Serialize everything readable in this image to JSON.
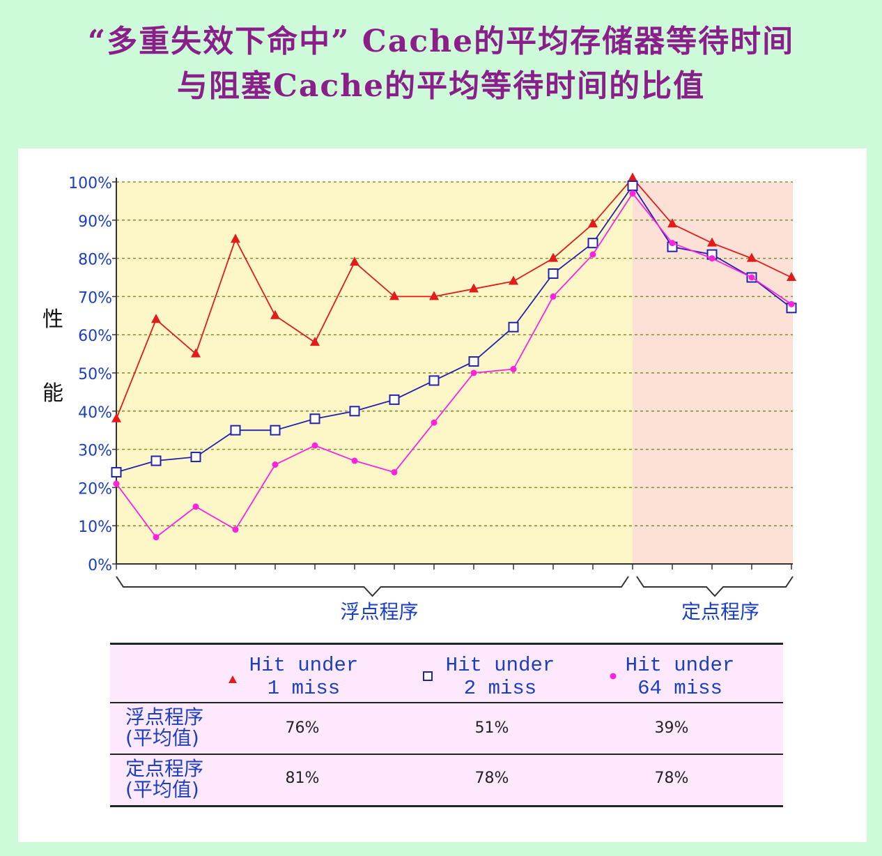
{
  "title": {
    "line1": "“多重失效下命中” Cache的平均存储器等待时间",
    "line2": "与阻塞Cache的平均等待时间的比值"
  },
  "chart_data": {
    "type": "line",
    "ylabel": "性能",
    "ylim": [
      0,
      100
    ],
    "yticks": [
      "0%",
      "10%",
      "20%",
      "30%",
      "40%",
      "50%",
      "60%",
      "70%",
      "80%",
      "90%",
      "100%"
    ],
    "grid": true,
    "groups": [
      {
        "label": "浮点程序",
        "start": 0,
        "end": 13
      },
      {
        "label": "定点程序",
        "start": 13,
        "end": 17
      }
    ],
    "colors": {
      "float_bg": "#fdf7c8",
      "int_bg": "#fde0d6",
      "grid": "#8a8a2a"
    },
    "series": [
      {
        "name": "Hit under 1 miss",
        "color": "#e21b1b",
        "marker": "triangle",
        "values": [
          38,
          64,
          55,
          85,
          65,
          58,
          79,
          70,
          70,
          72,
          74,
          80,
          89,
          101,
          89,
          84,
          80,
          75
        ]
      },
      {
        "name": "Hit under 2 miss",
        "color": "#2222aa",
        "marker": "square",
        "values": [
          24,
          27,
          28,
          35,
          35,
          38,
          40,
          43,
          48,
          53,
          62,
          76,
          84,
          99,
          83,
          81,
          75,
          67
        ]
      },
      {
        "name": "Hit under 64 miss",
        "color": "#ff22dd",
        "marker": "dot",
        "values": [
          21,
          7,
          15,
          9,
          26,
          31,
          27,
          24,
          37,
          50,
          51,
          70,
          81,
          97,
          84,
          80,
          75,
          68
        ]
      }
    ]
  },
  "table": {
    "legend": [
      {
        "line1": "Hit under",
        "line2": "1 miss",
        "marker": "triangle",
        "color": "#e21b1b"
      },
      {
        "line1": "Hit under",
        "line2": "2 miss",
        "marker": "square",
        "color": "#2222aa"
      },
      {
        "line1": "Hit under",
        "line2": "64 miss",
        "marker": "dot",
        "color": "#ff22dd"
      }
    ],
    "rows": [
      {
        "label1": "浮点程序",
        "label2": "(平均值)",
        "values": [
          "76%",
          "51%",
          "39%"
        ]
      },
      {
        "label1": "定点程序",
        "label2": "(平均值)",
        "values": [
          "81%",
          "78%",
          "78%"
        ]
      }
    ]
  }
}
